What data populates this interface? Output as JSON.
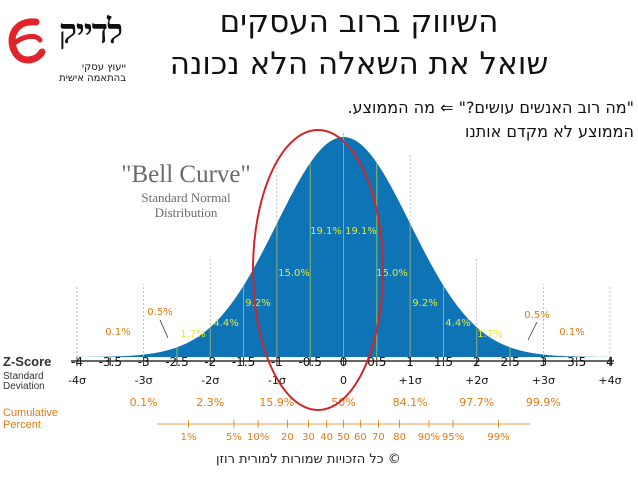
{
  "header": {
    "title_line1": "השיווק ברוב העסקים",
    "title_line2": "שואל את השאלה הלא נכונה"
  },
  "logo": {
    "name": "לדייק",
    "tagline1": "ייעוץ עסקי",
    "tagline2": "בהתאמה אישית"
  },
  "subtitle": {
    "line1": "\"מה רוב האנשים עושים?\" ⇐ מה הממוצע.",
    "line2": "הממוצע לא מקדם אותנו"
  },
  "chart_data": {
    "type": "area",
    "title": "\"Bell Curve\"",
    "subtitle_lines": [
      "Standard Normal",
      "Distribution"
    ],
    "x": [
      -4,
      -3.5,
      -3,
      -2.5,
      -2,
      -1.5,
      -1,
      -0.5,
      0,
      0.5,
      1,
      1.5,
      2,
      2.5,
      3,
      3.5,
      4
    ],
    "xlim": [
      -4,
      4
    ],
    "band_percentages": [
      {
        "from": -4,
        "to": -3,
        "label": "0.1%"
      },
      {
        "from": -3,
        "to": -2.5,
        "label": "0.5%"
      },
      {
        "from": -2.5,
        "to": -2,
        "label": "1.7%"
      },
      {
        "from": -2,
        "to": -1.5,
        "label": "4.4%"
      },
      {
        "from": -1.5,
        "to": -1,
        "label": "9.2%"
      },
      {
        "from": -1,
        "to": -0.5,
        "label": "15.0%"
      },
      {
        "from": -0.5,
        "to": 0,
        "label": "19.1%"
      },
      {
        "from": 0,
        "to": 0.5,
        "label": "19.1%"
      },
      {
        "from": 0.5,
        "to": 1,
        "label": "15.0%"
      },
      {
        "from": 1,
        "to": 1.5,
        "label": "9.2%"
      },
      {
        "from": 1.5,
        "to": 2,
        "label": "4.4%"
      },
      {
        "from": 2,
        "to": 2.5,
        "label": "1.7%"
      },
      {
        "from": 2.5,
        "to": 3,
        "label": "0.5%"
      },
      {
        "from": 3,
        "to": 4,
        "label": "0.1%"
      }
    ],
    "rows": {
      "zscore_label": "Z-Score",
      "zscore_ticks": [
        "-4",
        "-3.5",
        "-3",
        "-2.5",
        "-2",
        "-1.5",
        "-1",
        "-0.5",
        "0",
        "0.5",
        "1",
        "1.5",
        "2",
        "2.5",
        "3",
        "3.5",
        "4"
      ],
      "sd_label": [
        "Standard",
        "Deviation"
      ],
      "sd_ticks": [
        {
          "z": -4,
          "label": "-4σ"
        },
        {
          "z": -3,
          "label": "-3σ"
        },
        {
          "z": -2,
          "label": "-2σ"
        },
        {
          "z": -1,
          "label": "-1σ"
        },
        {
          "z": 0,
          "label": "0"
        },
        {
          "z": 1,
          "label": "+1σ"
        },
        {
          "z": 2,
          "label": "+2σ"
        },
        {
          "z": 3,
          "label": "+3σ"
        },
        {
          "z": 4,
          "label": "+4σ"
        }
      ],
      "cumulative_label": [
        "Cumulative",
        "Percent"
      ],
      "cumulative_ticks": [
        {
          "z": -3,
          "label": "0.1%"
        },
        {
          "z": -2,
          "label": "2.3%"
        },
        {
          "z": -1,
          "label": "15.9%"
        },
        {
          "z": 0,
          "label": "50%"
        },
        {
          "z": 1,
          "label": "84.1%"
        },
        {
          "z": 2,
          "label": "97.7%"
        },
        {
          "z": 3,
          "label": "99.9%"
        }
      ],
      "percentile_ticks": [
        {
          "z": -2.326,
          "label": "1%"
        },
        {
          "z": -1.645,
          "label": "5%"
        },
        {
          "z": -1.2816,
          "label": "10%"
        },
        {
          "z": -0.8416,
          "label": "20"
        },
        {
          "z": -0.5244,
          "label": "30"
        },
        {
          "z": -0.2533,
          "label": "40"
        },
        {
          "z": 0,
          "label": "50"
        },
        {
          "z": 0.2533,
          "label": "60"
        },
        {
          "z": 0.5244,
          "label": "70"
        },
        {
          "z": 0.8416,
          "label": "80"
        },
        {
          "z": 1.2816,
          "label": "90%"
        },
        {
          "z": 1.645,
          "label": "95%"
        },
        {
          "z": 2.326,
          "label": "99%"
        }
      ]
    },
    "colors": {
      "fill": "#0e74b5",
      "fill_dark": "#0a5d93",
      "band_line": "#c9e24e",
      "label_yellow": "#e5ea2f",
      "label_orange": "#e07b16",
      "title_color": "#6b6b6b",
      "circle": "#d0262b",
      "axis": "#333333"
    }
  },
  "footer": {
    "copyright": "© כל הזכויות שמורות למורית רוזן"
  }
}
